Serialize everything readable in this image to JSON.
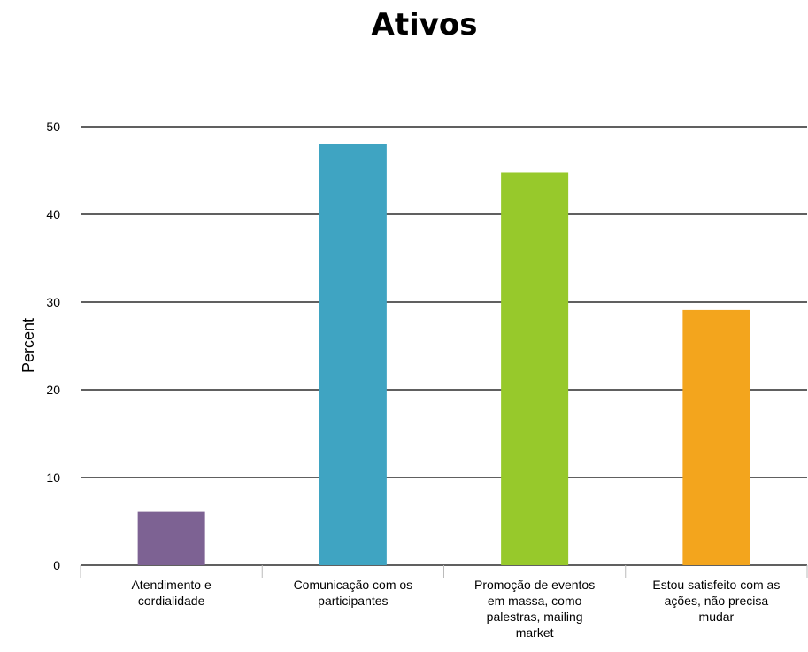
{
  "chart_data": {
    "type": "bar",
    "title": "Ativos",
    "xlabel": "",
    "ylabel": "Percent",
    "ylim": [
      0,
      50
    ],
    "yticks": [
      0,
      10,
      20,
      30,
      40,
      50
    ],
    "grid": true,
    "legend": "none",
    "categories": [
      [
        "Atendimento e",
        "cordialidade"
      ],
      [
        "Comunicação com os",
        "participantes"
      ],
      [
        "Promoção de eventos",
        "em massa, como",
        "palestras, mailing",
        "market"
      ],
      [
        "Estou satisfeito com as",
        "ações, não precisa",
        "mudar"
      ]
    ],
    "values": [
      6.1,
      48.0,
      44.8,
      29.1
    ],
    "colors": [
      "#7d6293",
      "#3fa4c2",
      "#97c92b",
      "#f3a51d"
    ]
  }
}
